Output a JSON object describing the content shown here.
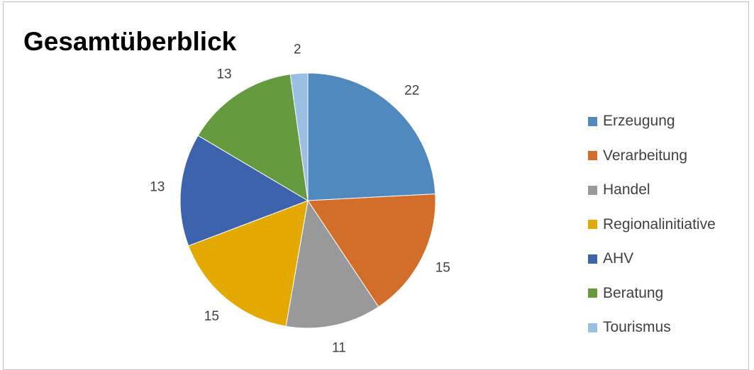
{
  "chart_data": {
    "type": "pie",
    "title": "Gesamtüberblick",
    "categories": [
      "Erzeugung",
      "Verarbeitung",
      "Handel",
      "Regionalinitiative",
      "AHV",
      "Beratung",
      "Tourismus"
    ],
    "values": [
      22,
      15,
      11,
      15,
      13,
      13,
      2
    ],
    "colors": [
      "#5089BE",
      "#D26D2A",
      "#999999",
      "#E4A900",
      "#3D63AD",
      "#659A3E",
      "#9ABFE3"
    ],
    "legend_position": "right",
    "start_angle": "12 o'clock, clockwise"
  }
}
